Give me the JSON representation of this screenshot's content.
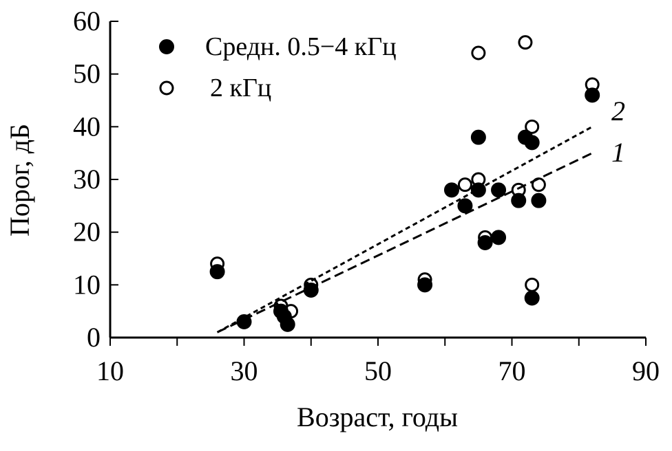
{
  "chart_data": {
    "type": "scatter",
    "xlabel": "Возраст, годы",
    "ylabel": "Порог, дБ",
    "xlim": [
      10,
      90
    ],
    "ylim": [
      0,
      60
    ],
    "xticks": [
      10,
      30,
      50,
      70,
      90
    ],
    "yticks": [
      0,
      10,
      20,
      30,
      40,
      50,
      60
    ],
    "grid": false,
    "legend_position": "top-left",
    "series": [
      {
        "name": "Средн. 0.5−4 кГц",
        "marker": "filled-circle",
        "color": "#000000",
        "x": [
          26,
          30,
          35.5,
          36,
          36.5,
          40,
          57,
          61,
          63,
          65,
          65,
          66,
          68,
          68,
          71,
          72,
          73,
          73,
          74,
          82
        ],
        "y": [
          12.5,
          3,
          5,
          4,
          2.5,
          9,
          10,
          28,
          25,
          28,
          38,
          18,
          19,
          28,
          26,
          38,
          37,
          7.5,
          26,
          46
        ]
      },
      {
        "name": "2 кГц",
        "marker": "open-circle",
        "color": "#000000",
        "x": [
          26,
          35.5,
          37,
          40,
          57,
          63,
          65,
          65,
          66,
          71,
          72,
          73,
          73,
          74,
          82
        ],
        "y": [
          14,
          6,
          5,
          10,
          11,
          29,
          30,
          54,
          19,
          28,
          56,
          40,
          10,
          29,
          48
        ]
      }
    ],
    "fit_lines": [
      {
        "label": "1",
        "style": "long-dash",
        "x": [
          26,
          82
        ],
        "y": [
          1,
          35
        ]
      },
      {
        "label": "2",
        "style": "short-dash",
        "x": [
          26,
          82
        ],
        "y": [
          1,
          40
        ]
      }
    ]
  }
}
